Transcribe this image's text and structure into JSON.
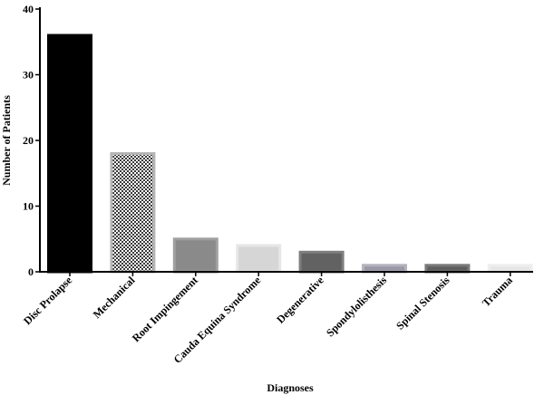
{
  "chart_data": {
    "type": "bar",
    "title": "",
    "xlabel": "Diagnoses",
    "ylabel": "Number of Patients",
    "ylim": [
      0,
      40
    ],
    "yticks": [
      0,
      10,
      20,
      30,
      40
    ],
    "categories": [
      "Disc Prolapse",
      "Mechanical",
      "Root Impingement",
      "Cauda Equina Syndrome",
      "Degenerative",
      "Spondylolisthesis",
      "Spinal Stenosis",
      "Trauma"
    ],
    "values": [
      36,
      18,
      5,
      4,
      3,
      1,
      1,
      1
    ],
    "bar_styles": [
      {
        "fill": "#000000",
        "pattern": "none",
        "edge": "#000000"
      },
      {
        "fill": "#6b6b6b",
        "pattern": "checker",
        "edge": "#b5b5b5"
      },
      {
        "fill": "#8a8a8a",
        "pattern": "none",
        "edge": "#a0a0a0"
      },
      {
        "fill": "#d6d6d6",
        "pattern": "none",
        "edge": "#e6e6e6"
      },
      {
        "fill": "#626262",
        "pattern": "none",
        "edge": "#7e7e7e"
      },
      {
        "fill": "#9a98a6",
        "pattern": "none",
        "edge": "#b4b2be"
      },
      {
        "fill": "#5e5e5e",
        "pattern": "none",
        "edge": "#7a7a7a"
      },
      {
        "fill": "#e6e6e6",
        "pattern": "none",
        "edge": "#eeeeee"
      }
    ],
    "grid": false,
    "legend": "none"
  }
}
